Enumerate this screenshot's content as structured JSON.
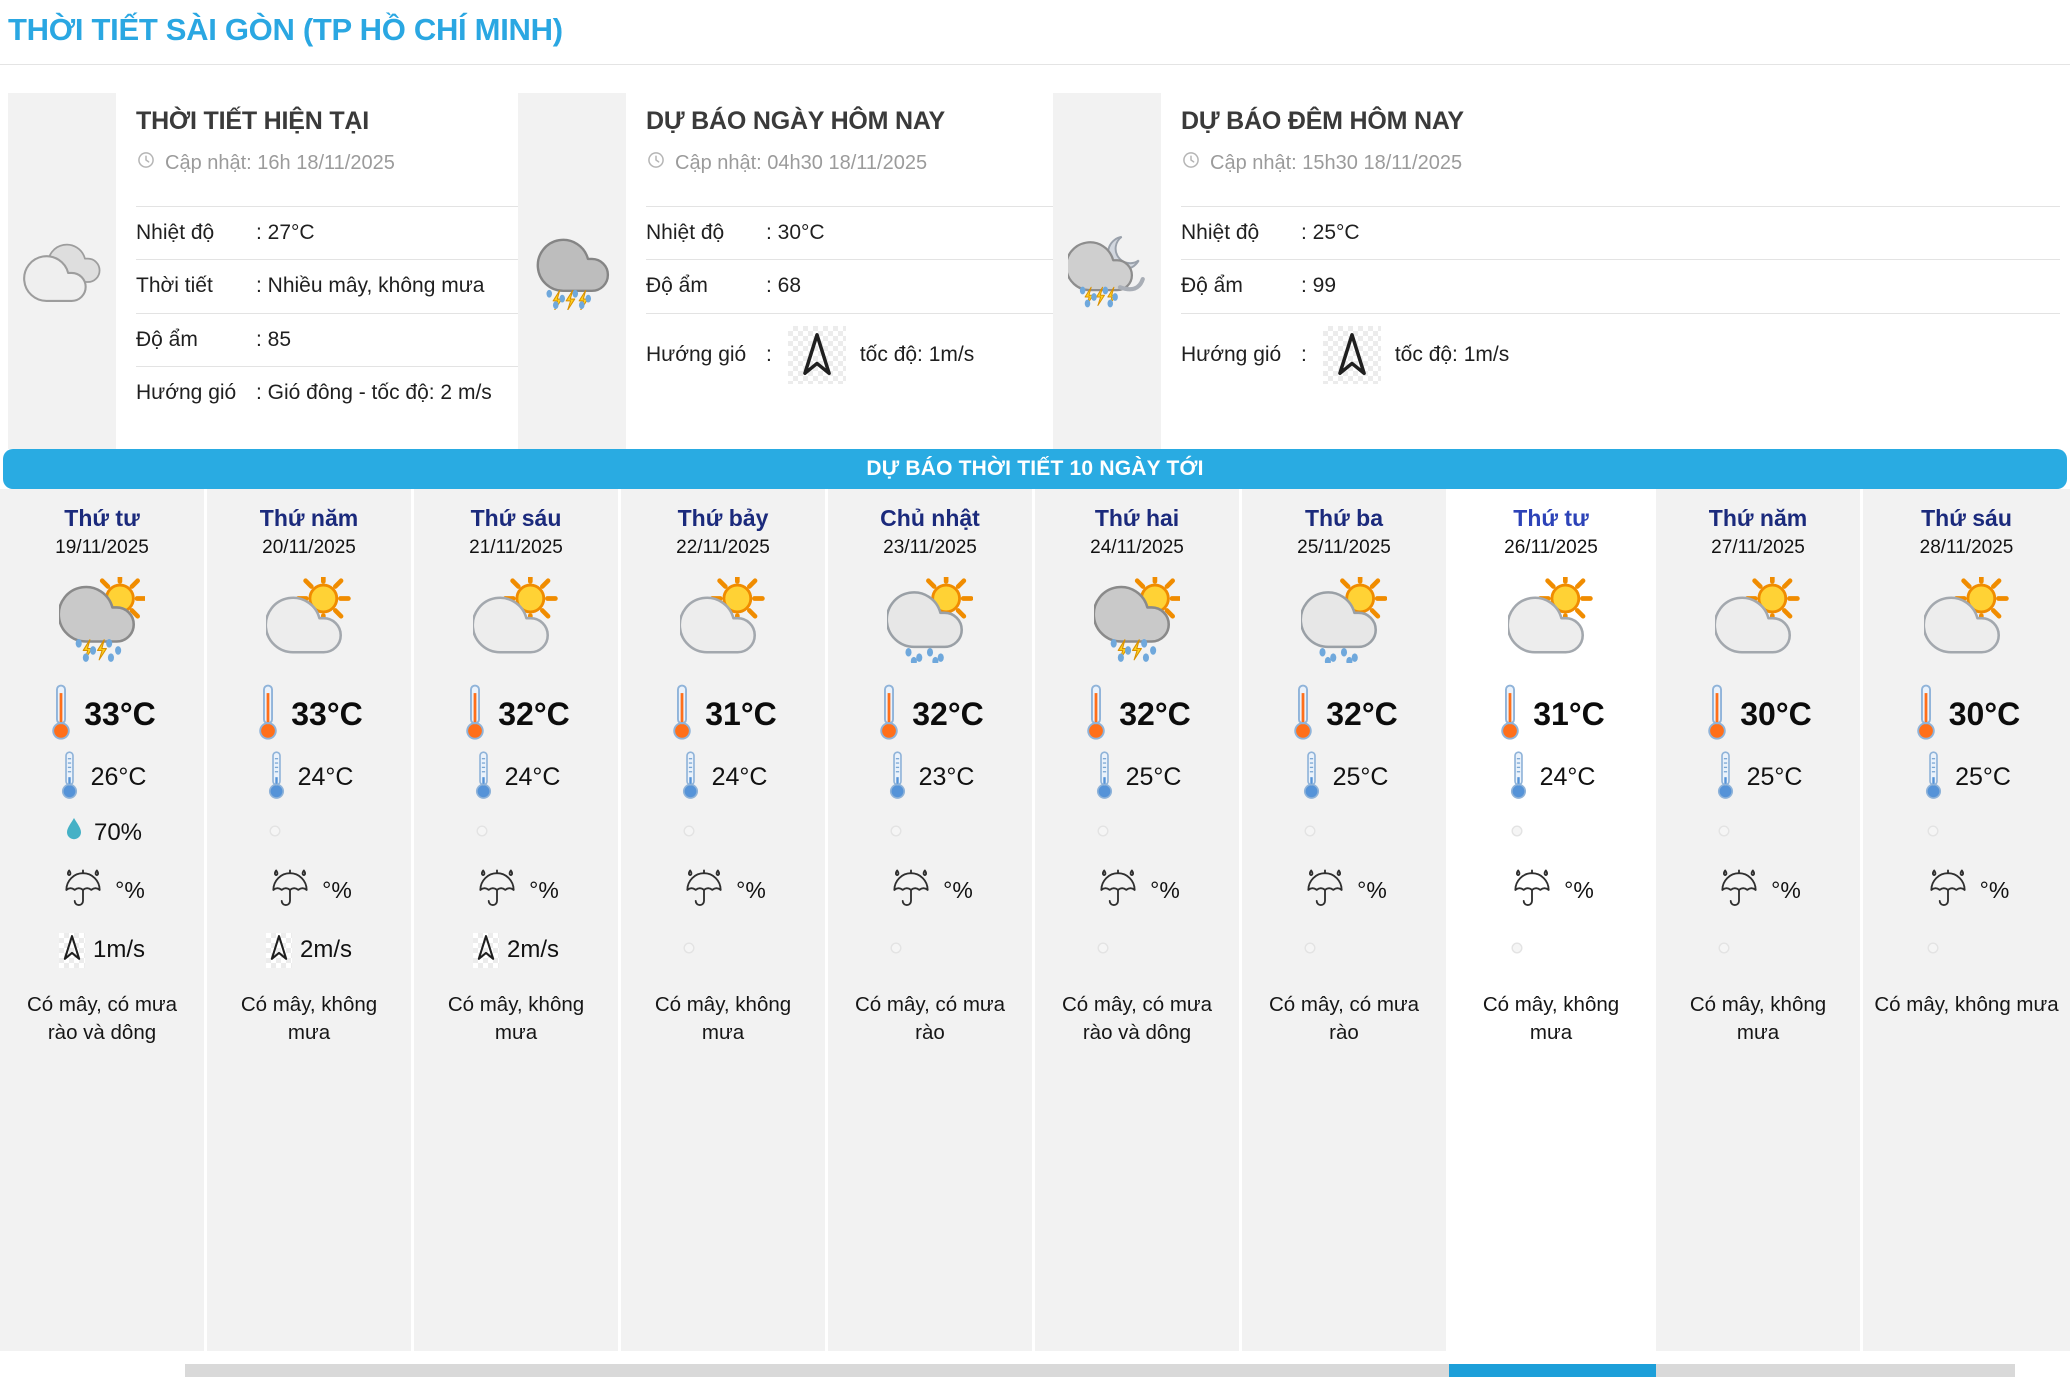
{
  "page_title": "THỜI TIẾT SÀI GÒN (TP HỒ CHÍ MINH)",
  "colors": {
    "title_blue": "#2aa7e2",
    "banner_blue": "#29abe2",
    "day_name_navy": "#1b2a7c",
    "selected_day_blue": "#2d43b8",
    "scroll_thumb_blue": "#1d9fd9",
    "column_gray": "#f2f2f2"
  },
  "icons": {
    "clock": "clock",
    "wind_direction": "wind-arrow",
    "umbrella": "umbrella",
    "droplet": "droplet",
    "thermometer_high": "thermo-high",
    "thermometer_low": "thermo-low",
    "placeholder": "placeholder-circle"
  },
  "panels": {
    "current": {
      "title": "THỜI TIẾT HIỆN TẠI",
      "updated": "Cập nhật: 16h 18/11/2025",
      "icon": "cloudy",
      "rows": [
        {
          "label": "Nhiệt độ",
          "value": ": 27°C"
        },
        {
          "label": "Thời tiết",
          "value": ": Nhiều mây, không mưa"
        },
        {
          "label": "Độ ẩm",
          "value": ": 85"
        },
        {
          "label": "Hướng gió",
          "value": ": Gió đông - tốc độ: 2 m/s"
        }
      ]
    },
    "today": {
      "title": "DỰ BÁO NGÀY HÔM NAY",
      "updated": "Cập nhật: 04h30 18/11/2025",
      "icon": "storm-rain",
      "rows": [
        {
          "label": "Nhiệt độ",
          "value": ": 30°C"
        },
        {
          "label": "Độ ẩm",
          "value": ": 68"
        },
        {
          "label": "Hướng gió",
          "value": ":",
          "speed": "tốc độ: 1m/s"
        }
      ]
    },
    "tonight": {
      "title": "DỰ BÁO ĐÊM HÔM NAY",
      "updated": "Cập nhật: 15h30 18/11/2025",
      "icon": "night-storm",
      "rows": [
        {
          "label": "Nhiệt độ",
          "value": ": 25°C"
        },
        {
          "label": "Độ ẩm",
          "value": ": 99"
        },
        {
          "label": "Hướng gió",
          "value": ":",
          "speed": "tốc độ: 1m/s"
        }
      ]
    }
  },
  "forecast": {
    "banner": "DỰ BÁO THỜI TIẾT 10 NGÀY TỚI",
    "days": [
      {
        "day": "Thứ tư",
        "date": "19/11/2025",
        "icon": "storm-sun",
        "high": "33°C",
        "low": "26°C",
        "humidity": "70%",
        "rain": "°%",
        "wind": "1m/s",
        "desc": "Có mây, có mưa rào và dông",
        "selected": false
      },
      {
        "day": "Thứ năm",
        "date": "20/11/2025",
        "icon": "sun-cloud",
        "high": "33°C",
        "low": "24°C",
        "humidity": null,
        "rain": "°%",
        "wind": "2m/s",
        "desc": "Có mây, không mưa",
        "selected": false
      },
      {
        "day": "Thứ sáu",
        "date": "21/11/2025",
        "icon": "sun-cloud",
        "high": "32°C",
        "low": "24°C",
        "humidity": null,
        "rain": "°%",
        "wind": "2m/s",
        "desc": "Có mây, không mưa",
        "selected": false
      },
      {
        "day": "Thứ bảy",
        "date": "22/11/2025",
        "icon": "sun-cloud",
        "high": "31°C",
        "low": "24°C",
        "humidity": null,
        "rain": "°%",
        "wind": null,
        "desc": "Có mây, không mưa",
        "selected": false
      },
      {
        "day": "Chủ nhật",
        "date": "23/11/2025",
        "icon": "rain-sun",
        "high": "32°C",
        "low": "23°C",
        "humidity": null,
        "rain": "°%",
        "wind": null,
        "desc": "Có mây, có mưa rào",
        "selected": false
      },
      {
        "day": "Thứ hai",
        "date": "24/11/2025",
        "icon": "storm-sun",
        "high": "32°C",
        "low": "25°C",
        "humidity": null,
        "rain": "°%",
        "wind": null,
        "desc": "Có mây, có mưa rào và dông",
        "selected": false
      },
      {
        "day": "Thứ ba",
        "date": "25/11/2025",
        "icon": "rain-sun",
        "high": "32°C",
        "low": "25°C",
        "humidity": null,
        "rain": "°%",
        "wind": null,
        "desc": "Có mây, có mưa rào",
        "selected": false
      },
      {
        "day": "Thứ tư",
        "date": "26/11/2025",
        "icon": "sun-cloud",
        "high": "31°C",
        "low": "24°C",
        "humidity": null,
        "rain": "°%",
        "wind": null,
        "desc": "Có mây, không mưa",
        "selected": true
      },
      {
        "day": "Thứ năm",
        "date": "27/11/2025",
        "icon": "sun-cloud",
        "high": "30°C",
        "low": "25°C",
        "humidity": null,
        "rain": "°%",
        "wind": null,
        "desc": "Có mây, không mưa",
        "selected": false
      },
      {
        "day": "Thứ sáu",
        "date": "28/11/2025",
        "icon": "sun-cloud",
        "high": "30°C",
        "low": "25°C",
        "humidity": null,
        "rain": "°%",
        "wind": null,
        "desc": "Có mây, không mưa",
        "selected": false
      }
    ]
  }
}
